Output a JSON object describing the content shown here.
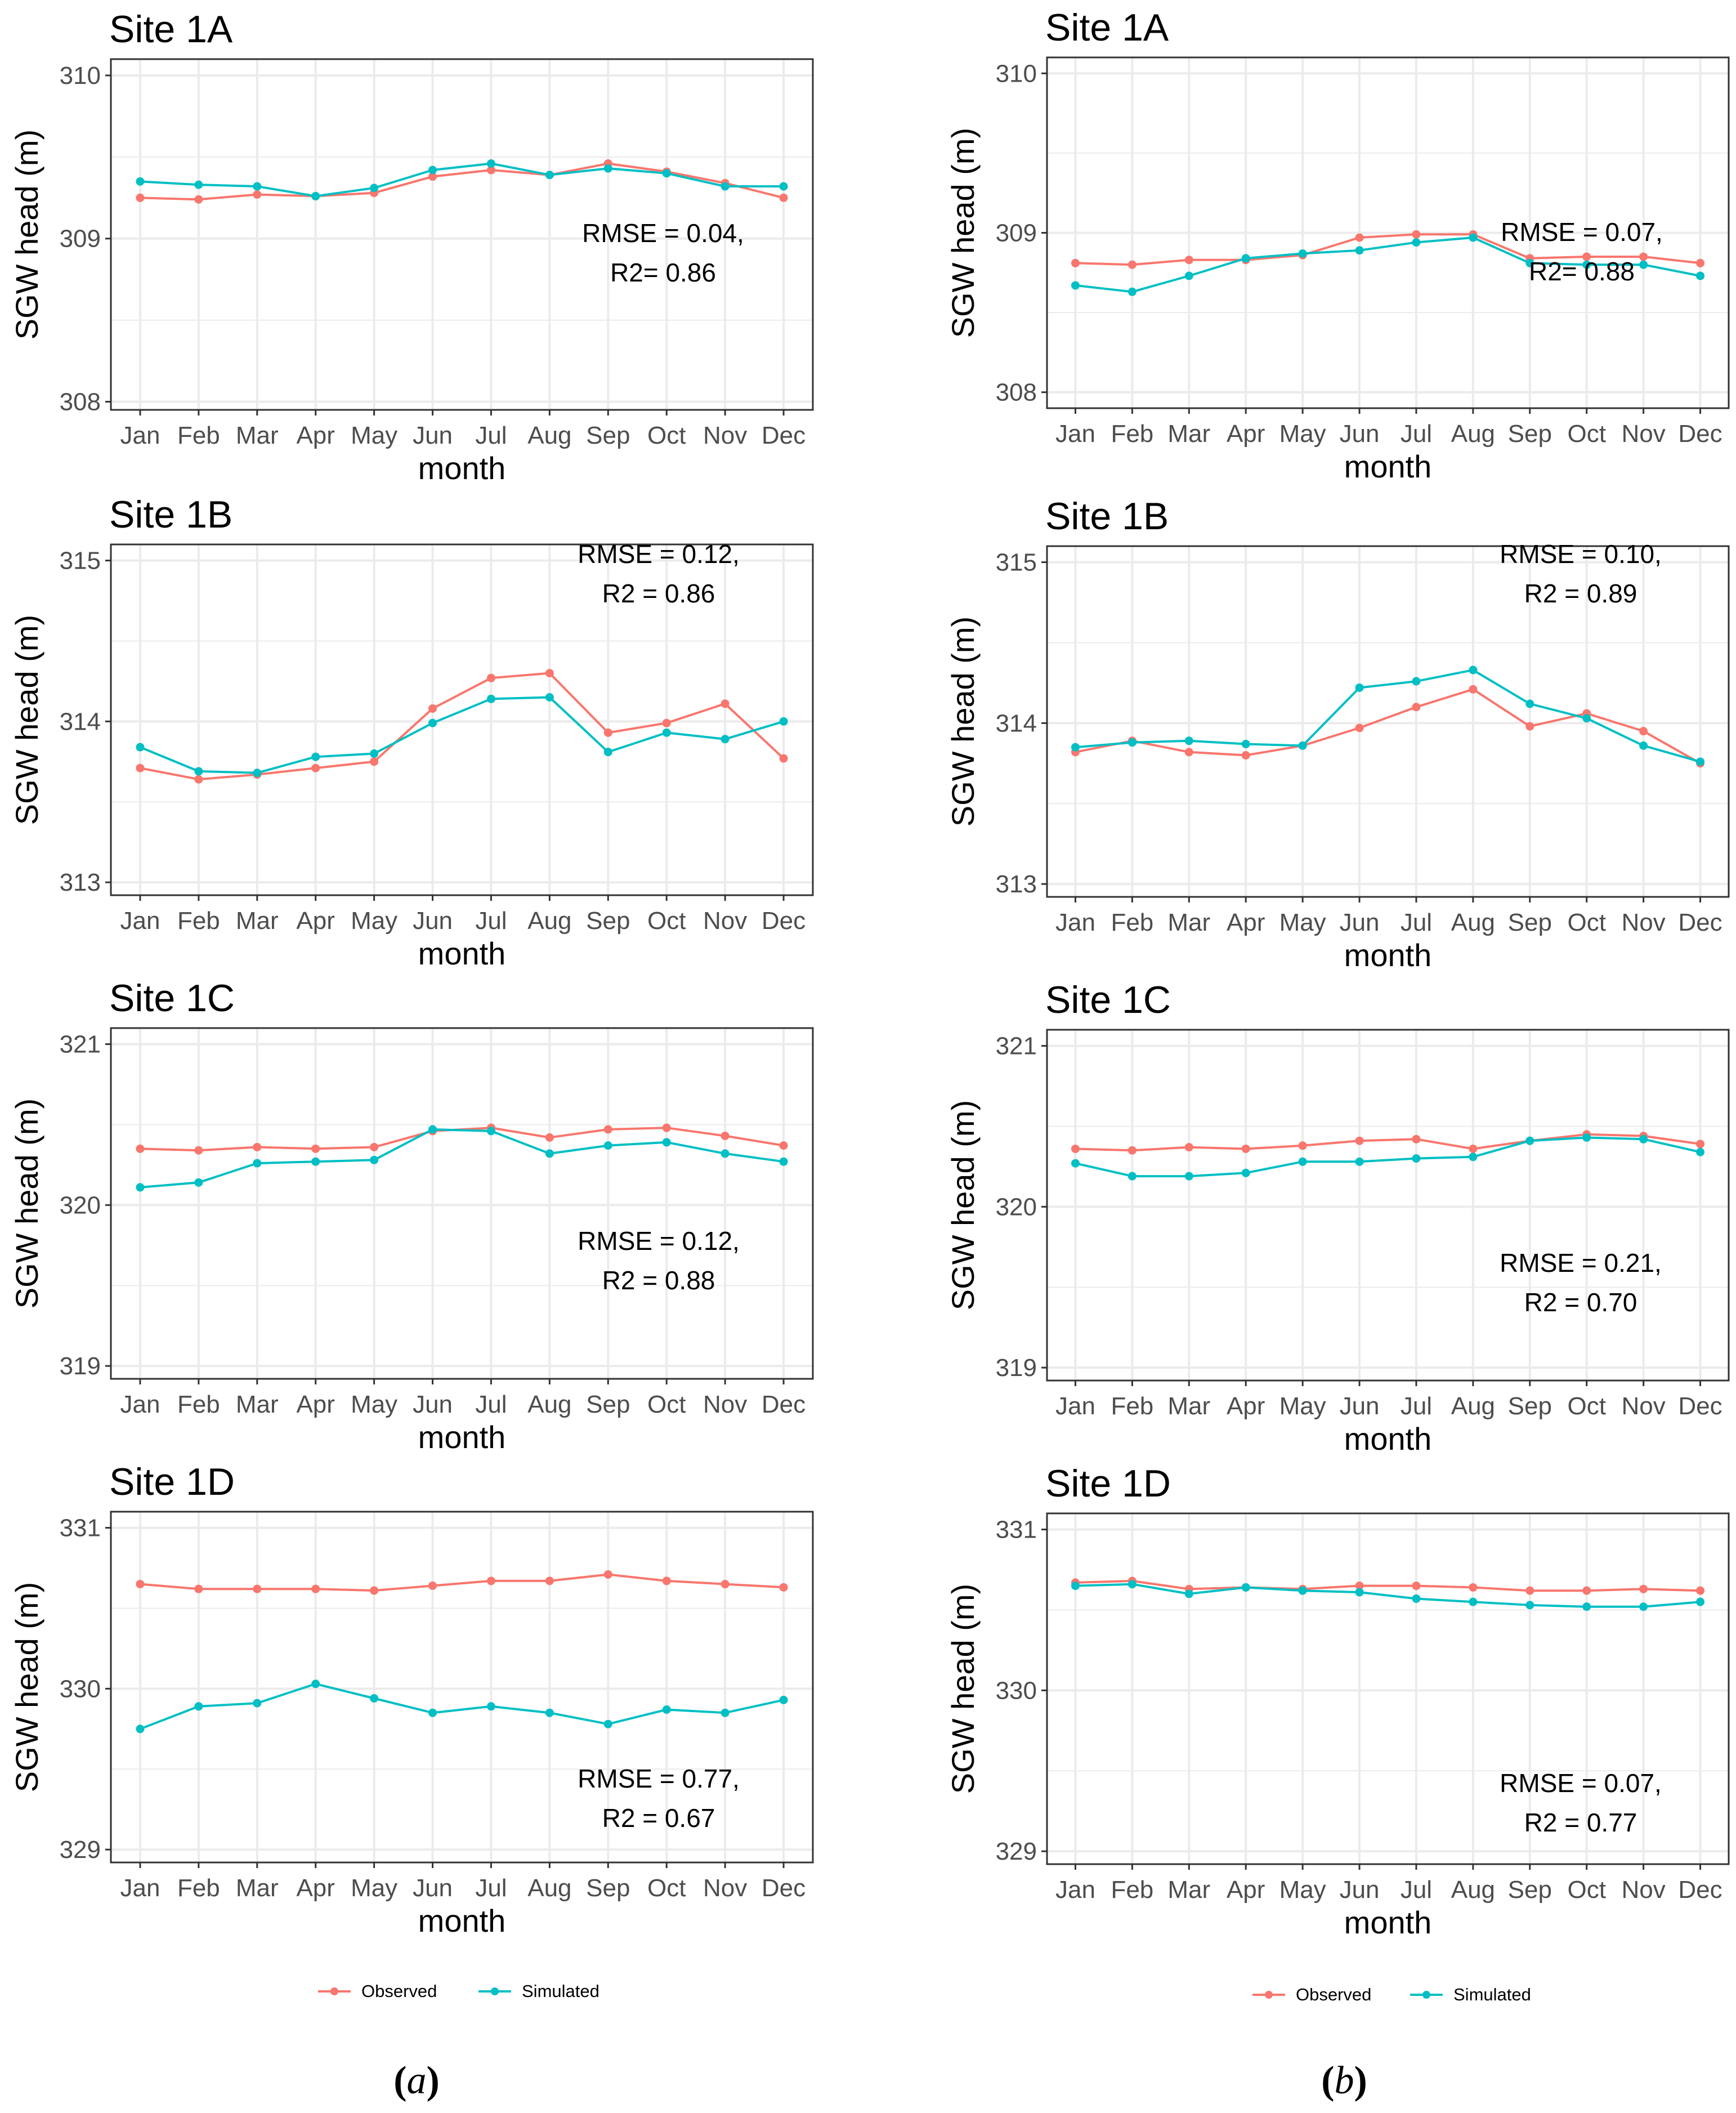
{
  "figure": {
    "columns": [
      {
        "label_prefix": "(",
        "label_letter": "a",
        "label_suffix": ")"
      },
      {
        "label_prefix": "(",
        "label_letter": "b",
        "label_suffix": ")"
      }
    ]
  },
  "style": {
    "observed_color": "#F8766D",
    "simulated_color": "#00BFC4",
    "gridline_color": "#EBEBEB",
    "panel_border_color": "#333333"
  },
  "legend": {
    "observed": "Observed",
    "simulated": "Simulated"
  },
  "chart_data": [
    {
      "type": "line",
      "column": "a",
      "title": "Site 1A",
      "xlabel": "month",
      "ylabel": "SGW head (m)",
      "categories": [
        "Jan",
        "Feb",
        "Mar",
        "Apr",
        "May",
        "Jun",
        "Jul",
        "Aug",
        "Sep",
        "Oct",
        "Nov",
        "Dec"
      ],
      "ylim": [
        307.95,
        310.1
      ],
      "yticks": [
        308,
        309,
        310
      ],
      "series": [
        {
          "name": "Observed",
          "values": [
            309.25,
            309.24,
            309.27,
            309.26,
            309.28,
            309.38,
            309.42,
            309.39,
            309.46,
            309.41,
            309.34,
            309.25
          ]
        },
        {
          "name": "Simulated",
          "values": [
            309.35,
            309.33,
            309.32,
            309.26,
            309.31,
            309.42,
            309.46,
            309.39,
            309.43,
            309.4,
            309.32,
            309.32
          ]
        }
      ],
      "annotation": [
        "RMSE = 0.04,",
        "R2= 0.86"
      ]
    },
    {
      "type": "line",
      "column": "b",
      "title": "Site 1A",
      "xlabel": "month",
      "ylabel": "SGW head (m)",
      "categories": [
        "Jan",
        "Feb",
        "Mar",
        "Apr",
        "May",
        "Jun",
        "Jul",
        "Aug",
        "Sep",
        "Oct",
        "Nov",
        "Dec"
      ],
      "ylim": [
        307.9,
        310.1
      ],
      "yticks": [
        308,
        309,
        310
      ],
      "series": [
        {
          "name": "Observed",
          "values": [
            308.81,
            308.8,
            308.83,
            308.83,
            308.86,
            308.97,
            308.99,
            308.99,
            308.84,
            308.85,
            308.85,
            308.81
          ]
        },
        {
          "name": "Simulated",
          "values": [
            308.67,
            308.63,
            308.73,
            308.84,
            308.87,
            308.89,
            308.94,
            308.97,
            308.81,
            308.8,
            308.8,
            308.73
          ]
        }
      ],
      "annotation": [
        "RMSE = 0.07,",
        "R2= 0.88"
      ]
    },
    {
      "type": "line",
      "column": "a",
      "title": "Site 1B",
      "xlabel": "month",
      "ylabel": "SGW head (m)",
      "categories": [
        "Jan",
        "Feb",
        "Mar",
        "Apr",
        "May",
        "Jun",
        "Jul",
        "Aug",
        "Sep",
        "Oct",
        "Nov",
        "Dec"
      ],
      "ylim": [
        312.92,
        315.1
      ],
      "yticks": [
        313,
        314,
        315
      ],
      "series": [
        {
          "name": "Observed",
          "values": [
            313.71,
            313.64,
            313.67,
            313.71,
            313.75,
            314.08,
            314.27,
            314.3,
            313.93,
            313.99,
            314.11,
            313.77
          ]
        },
        {
          "name": "Simulated",
          "values": [
            313.84,
            313.69,
            313.68,
            313.78,
            313.8,
            313.99,
            314.14,
            314.15,
            313.81,
            313.93,
            313.89,
            314.0
          ]
        }
      ],
      "annotation": [
        "RMSE = 0.12,",
        "R2 = 0.86"
      ]
    },
    {
      "type": "line",
      "column": "b",
      "title": "Site 1B",
      "xlabel": "month",
      "ylabel": "SGW head (m)",
      "categories": [
        "Jan",
        "Feb",
        "Mar",
        "Apr",
        "May",
        "Jun",
        "Jul",
        "Aug",
        "Sep",
        "Oct",
        "Nov",
        "Dec"
      ],
      "ylim": [
        312.92,
        315.1
      ],
      "yticks": [
        313,
        314,
        315
      ],
      "series": [
        {
          "name": "Observed",
          "values": [
            313.82,
            313.89,
            313.82,
            313.8,
            313.86,
            313.97,
            314.1,
            314.21,
            313.98,
            314.06,
            313.95,
            313.75
          ]
        },
        {
          "name": "Simulated",
          "values": [
            313.85,
            313.88,
            313.89,
            313.87,
            313.86,
            314.22,
            314.26,
            314.33,
            314.12,
            314.03,
            313.86,
            313.76
          ]
        }
      ],
      "annotation": [
        "RMSE = 0.10,",
        "R2 = 0.89"
      ]
    },
    {
      "type": "line",
      "column": "a",
      "title": "Site 1C",
      "xlabel": "month",
      "ylabel": "SGW head (m)",
      "categories": [
        "Jan",
        "Feb",
        "Mar",
        "Apr",
        "May",
        "Jun",
        "Jul",
        "Aug",
        "Sep",
        "Oct",
        "Nov",
        "Dec"
      ],
      "ylim": [
        318.92,
        321.1
      ],
      "yticks": [
        319,
        320,
        321
      ],
      "series": [
        {
          "name": "Observed",
          "values": [
            320.35,
            320.34,
            320.36,
            320.35,
            320.36,
            320.46,
            320.48,
            320.42,
            320.47,
            320.48,
            320.43,
            320.37
          ]
        },
        {
          "name": "Simulated",
          "values": [
            320.11,
            320.14,
            320.26,
            320.27,
            320.28,
            320.47,
            320.46,
            320.32,
            320.37,
            320.39,
            320.32,
            320.27
          ]
        }
      ],
      "annotation": [
        "RMSE = 0.12,",
        "R2 = 0.88"
      ]
    },
    {
      "type": "line",
      "column": "b",
      "title": "Site 1C",
      "xlabel": "month",
      "ylabel": "SGW head (m)",
      "categories": [
        "Jan",
        "Feb",
        "Mar",
        "Apr",
        "May",
        "Jun",
        "Jul",
        "Aug",
        "Sep",
        "Oct",
        "Nov",
        "Dec"
      ],
      "ylim": [
        318.92,
        321.1
      ],
      "yticks": [
        319,
        320,
        321
      ],
      "series": [
        {
          "name": "Observed",
          "values": [
            320.36,
            320.35,
            320.37,
            320.36,
            320.38,
            320.41,
            320.42,
            320.36,
            320.41,
            320.45,
            320.44,
            320.39
          ]
        },
        {
          "name": "Simulated",
          "values": [
            320.27,
            320.19,
            320.19,
            320.21,
            320.28,
            320.28,
            320.3,
            320.31,
            320.41,
            320.43,
            320.42,
            320.34
          ]
        }
      ],
      "annotation": [
        "RMSE = 0.21,",
        "R2 = 0.70"
      ]
    },
    {
      "type": "line",
      "column": "a",
      "title": "Site 1D",
      "xlabel": "month",
      "ylabel": "SGW head (m)",
      "categories": [
        "Jan",
        "Feb",
        "Mar",
        "Apr",
        "May",
        "Jun",
        "Jul",
        "Aug",
        "Sep",
        "Oct",
        "Nov",
        "Dec"
      ],
      "ylim": [
        328.92,
        331.1
      ],
      "yticks": [
        329,
        330,
        331
      ],
      "series": [
        {
          "name": "Observed",
          "values": [
            330.65,
            330.62,
            330.62,
            330.62,
            330.61,
            330.64,
            330.67,
            330.67,
            330.71,
            330.67,
            330.65,
            330.63
          ]
        },
        {
          "name": "Simulated",
          "values": [
            329.75,
            329.89,
            329.91,
            330.03,
            329.94,
            329.85,
            329.89,
            329.85,
            329.78,
            329.87,
            329.85,
            329.93
          ]
        }
      ],
      "annotation": [
        "RMSE = 0.77,",
        "R2 = 0.67"
      ]
    },
    {
      "type": "line",
      "column": "b",
      "title": "Site 1D",
      "xlabel": "month",
      "ylabel": "SGW head (m)",
      "categories": [
        "Jan",
        "Feb",
        "Mar",
        "Apr",
        "May",
        "Jun",
        "Jul",
        "Aug",
        "Sep",
        "Oct",
        "Nov",
        "Dec"
      ],
      "ylim": [
        328.92,
        331.1
      ],
      "yticks": [
        329,
        330,
        331
      ],
      "series": [
        {
          "name": "Observed",
          "values": [
            330.67,
            330.68,
            330.63,
            330.64,
            330.63,
            330.65,
            330.65,
            330.64,
            330.62,
            330.62,
            330.63,
            330.62
          ]
        },
        {
          "name": "Simulated",
          "values": [
            330.65,
            330.66,
            330.6,
            330.64,
            330.62,
            330.61,
            330.57,
            330.55,
            330.53,
            330.52,
            330.52,
            330.55
          ]
        }
      ],
      "annotation": [
        "RMSE = 0.07,",
        "R2 = 0.77"
      ]
    }
  ]
}
